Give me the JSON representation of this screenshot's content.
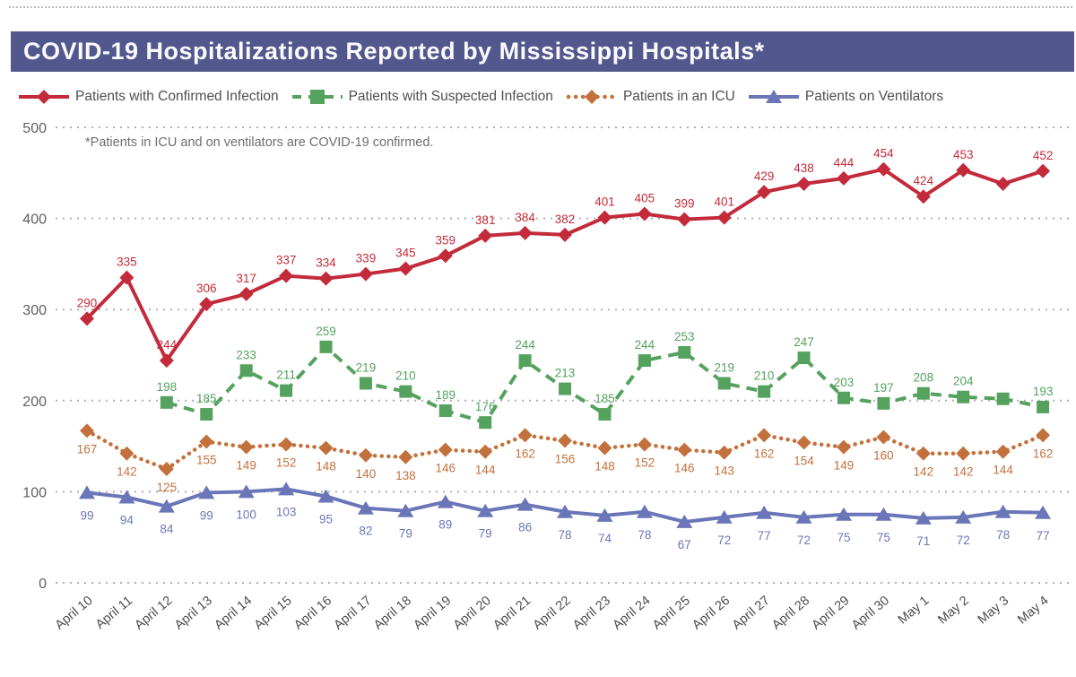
{
  "title": "COVID-19 Hospitalizations Reported by Mississippi Hospitals*",
  "annotation": "*Patients in ICU and on ventilators are COVID-19 confirmed.",
  "colors": {
    "banner": "#52578d",
    "confirmed": "#c32b3b",
    "suspected": "#55a25f",
    "icu": "#c3713c",
    "ventilators": "#6b76b8",
    "grid": "#b0b0b0",
    "axis_text": "#5f5f5f",
    "x_axis_text": "#4d4d4d"
  },
  "legend": {
    "items": [
      {
        "label": "Patients with Confirmed Infection"
      },
      {
        "label": "Patients with Suspected Infection"
      },
      {
        "label": "Patients in an ICU"
      },
      {
        "label": "Patients on Ventilators"
      }
    ]
  },
  "chart_data": {
    "type": "line",
    "title": "COVID-19 Hospitalizations Reported by Mississippi Hospitals*",
    "annotation": "*Patients in ICU and on ventilators are COVID-19 confirmed.",
    "categories": [
      "April 10",
      "April 11",
      "April 12",
      "April 13",
      "April 14",
      "April 15",
      "April 16",
      "April 17",
      "April 18",
      "April 19",
      "April 20",
      "April 21",
      "April 22",
      "April 23",
      "April 24",
      "April 25",
      "April 26",
      "April 27",
      "April 28",
      "April 29",
      "April 30",
      "May 1",
      "May 2",
      "May 3",
      "May 4"
    ],
    "ylim": [
      0,
      500
    ],
    "yticks": [
      0,
      100,
      200,
      300,
      400,
      500
    ],
    "grid": "horizontal-dotted",
    "legend_position": "top",
    "series": [
      {
        "name": "Patients with Confirmed Infection",
        "color": "#c32b3b",
        "marker": "diamond",
        "line_style": "solid",
        "label_position": "above",
        "label_dy": -13,
        "start_index": 0,
        "values": [
          290,
          335,
          244,
          306,
          317,
          337,
          334,
          339,
          345,
          359,
          381,
          384,
          382,
          401,
          405,
          399,
          401,
          429,
          438,
          444,
          454,
          424,
          453,
          438,
          452
        ],
        "hidden_label_indices": [
          23
        ]
      },
      {
        "name": "Patients with Suspected Infection",
        "color": "#55a25f",
        "marker": "square",
        "line_style": "dashed",
        "label_position": "above",
        "label_dy": -13,
        "start_index": 2,
        "values": [
          198,
          185,
          233,
          211,
          259,
          219,
          210,
          189,
          176,
          244,
          213,
          185,
          244,
          253,
          219,
          210,
          247,
          203,
          197,
          208,
          204,
          202,
          193
        ],
        "hidden_label_indices": [
          21
        ]
      },
      {
        "name": "Patients in an ICU",
        "color": "#c3713c",
        "marker": "diamond",
        "line_style": "dotted",
        "label_position": "below",
        "label_dy": 25,
        "start_index": 0,
        "values": [
          167,
          142,
          125,
          155,
          149,
          152,
          148,
          140,
          138,
          146,
          144,
          162,
          156,
          148,
          152,
          146,
          143,
          162,
          154,
          149,
          160,
          142,
          142,
          144,
          162
        ],
        "hidden_label_indices": []
      },
      {
        "name": "Patients on Ventilators",
        "color": "#6b76b8",
        "marker": "triangle",
        "line_style": "solid",
        "label_position": "below",
        "label_dy": 30,
        "start_index": 0,
        "values": [
          99,
          94,
          84,
          99,
          100,
          103,
          95,
          82,
          79,
          89,
          79,
          86,
          78,
          74,
          78,
          67,
          72,
          77,
          72,
          75,
          75,
          71,
          72,
          78,
          77
        ],
        "hidden_label_indices": []
      }
    ]
  }
}
